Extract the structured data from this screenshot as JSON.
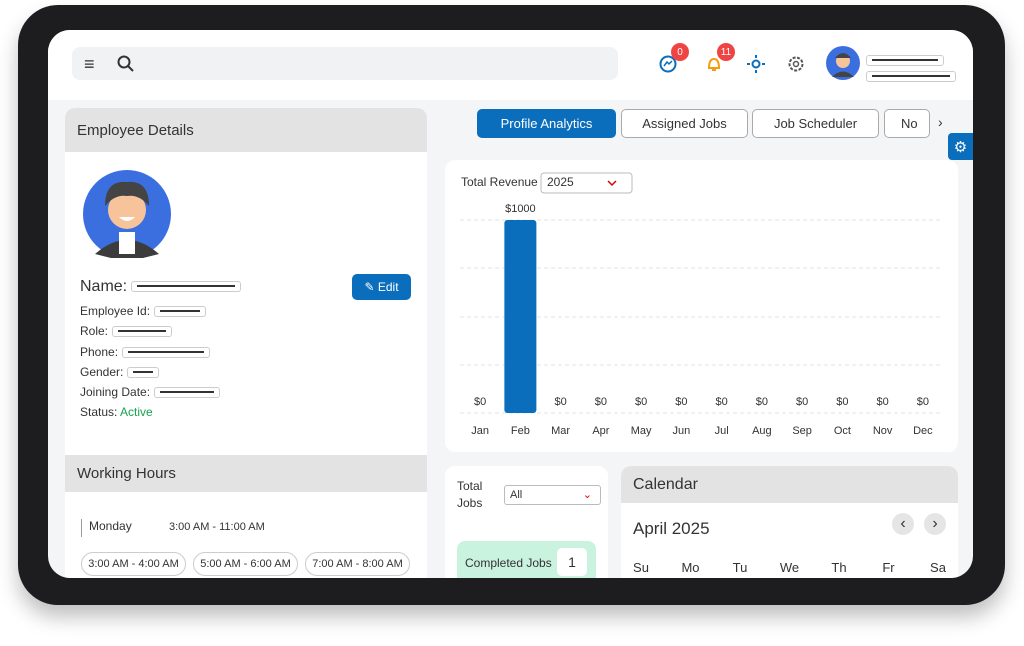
{
  "header": {
    "messages_badge": 0,
    "notifications_badge": 11
  },
  "tabs": [
    "Profile Analytics",
    "Assigned Jobs",
    "Job Scheduler",
    "No"
  ],
  "employee": {
    "title": "Employee Details",
    "name_label": "Name:",
    "edit": "Edit",
    "fields": [
      "Employee Id:",
      "Role:",
      "Phone:",
      "Gender:",
      "Joining Date:"
    ],
    "status_label": "Status:",
    "status": "Active"
  },
  "working_hours": {
    "title": "Working Hours",
    "day": "Monday",
    "range": "3:00 AM - 11:00 AM",
    "slots": [
      "3:00 AM - 4:00 AM",
      "5:00 AM - 6:00 AM",
      "7:00 AM - 8:00 AM"
    ]
  },
  "chart_data": {
    "type": "bar",
    "title": "Total Revenue",
    "year": "2025",
    "categories": [
      "Jan",
      "Feb",
      "Mar",
      "Apr",
      "May",
      "Jun",
      "Jul",
      "Aug",
      "Sep",
      "Oct",
      "Nov",
      "Dec"
    ],
    "values": [
      0,
      1000,
      0,
      0,
      0,
      0,
      0,
      0,
      0,
      0,
      0,
      0
    ],
    "value_labels": [
      "$0",
      "$1000",
      "$0",
      "$0",
      "$0",
      "$0",
      "$0",
      "$0",
      "$0",
      "$0",
      "$0",
      "$0"
    ],
    "color": "#0a6ebd",
    "ylim": [
      0,
      1000
    ]
  },
  "jobs": {
    "title": "Total Jobs",
    "filter": "All",
    "completed_label": "Completed Jobs",
    "completed": 1
  },
  "calendar": {
    "title": "Calendar",
    "month": "April 2025",
    "weekdays": [
      "Su",
      "Mo",
      "Tu",
      "We",
      "Th",
      "Fr",
      "Sa"
    ]
  }
}
